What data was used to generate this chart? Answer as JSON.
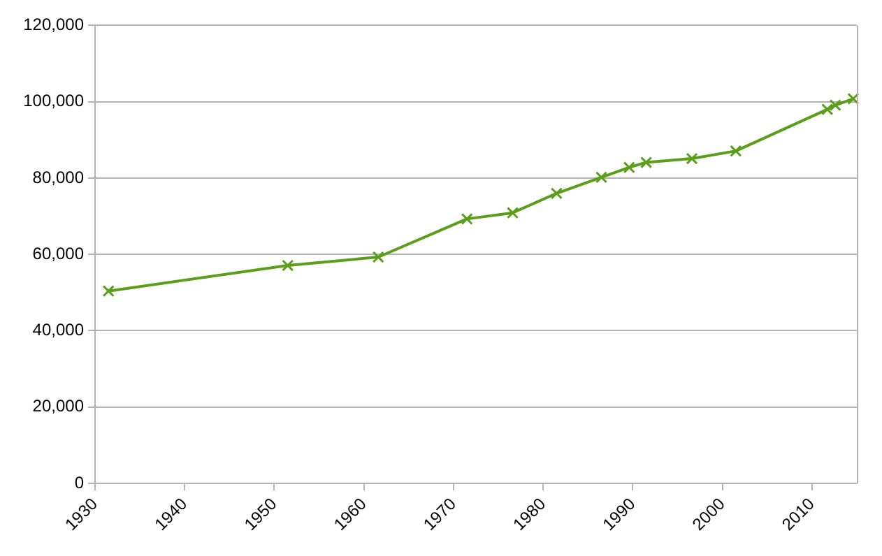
{
  "chart_data": {
    "type": "line",
    "x": [
      1931.5,
      1951.5,
      1961.6,
      1971.5,
      1976.6,
      1981.5,
      1986.5,
      1989.6,
      1991.5,
      1996.6,
      2001.5,
      2011.7,
      2012.6,
      2014.6
    ],
    "series": [
      {
        "color": "#5a9e1a",
        "values": [
          50400,
          57100,
          59300,
          69300,
          70900,
          76000,
          80200,
          82800,
          84100,
          85100,
          87100,
          98000,
          99100,
          100800
        ]
      }
    ],
    "xlim": [
      1930,
      2015
    ],
    "xticks": [
      1930,
      1940,
      1950,
      1960,
      1970,
      1980,
      1990,
      2000,
      2010
    ],
    "ylim": [
      0,
      120000
    ],
    "yticks": [
      0,
      {
        "value": 20000,
        "label": "20,000"
      },
      {
        "value": 40000,
        "label": "40,000"
      },
      {
        "value": 60000,
        "label": "60,000"
      },
      {
        "value": 80000,
        "label": "80,000"
      },
      {
        "value": 100000,
        "label": "100,000"
      },
      {
        "value": 120000,
        "label": "120,000"
      }
    ],
    "grid": "y",
    "legend": false,
    "marker": "cross",
    "line_style": "solid"
  }
}
